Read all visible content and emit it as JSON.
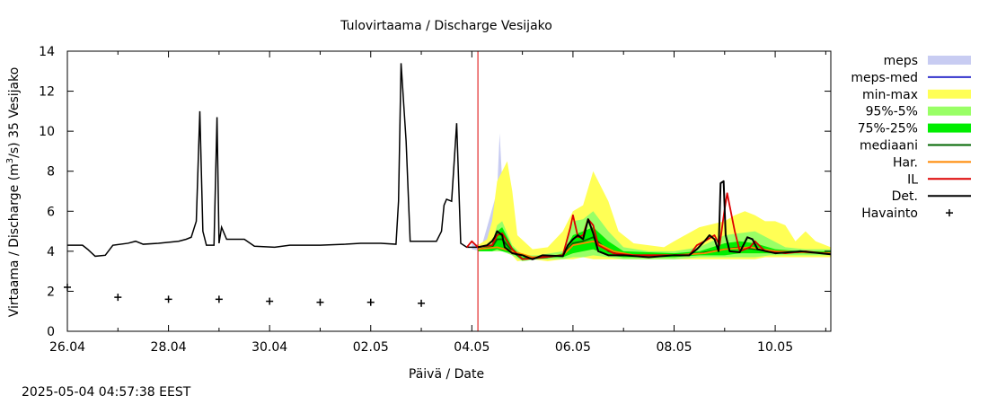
{
  "chart_data": {
    "type": "line",
    "title": "Tulovirtaama / Discharge  Vesijako",
    "xlabel": "Päivä / Date",
    "ylabel_parts": [
      "Virtaama / Discharge (m",
      "3",
      "/s)  35 Vesijako"
    ],
    "x_unit": "days since 26.04",
    "xlim": [
      0,
      15.1
    ],
    "ylim": [
      0,
      14
    ],
    "yticks": [
      "0",
      "2",
      "4",
      "6",
      "8",
      "10",
      "12",
      "14"
    ],
    "ytick_values": [
      0,
      2,
      4,
      6,
      8,
      10,
      12,
      14
    ],
    "xticks": [
      {
        "label": "26.04",
        "x": 0
      },
      {
        "label": "28.04",
        "x": 2
      },
      {
        "label": "30.04",
        "x": 4
      },
      {
        "label": "02.05",
        "x": 6
      },
      {
        "label": "04.05",
        "x": 8
      },
      {
        "label": "06.05",
        "x": 10
      },
      {
        "label": "08.05",
        "x": 12
      },
      {
        "label": "10.05",
        "x": 14
      }
    ],
    "forecast_start": 8.12,
    "observed": [
      [
        0,
        4.3
      ],
      [
        0.3,
        4.3
      ],
      [
        0.4,
        4.1
      ],
      [
        0.55,
        3.75
      ],
      [
        0.75,
        3.8
      ],
      [
        0.9,
        4.3
      ],
      [
        1.2,
        4.4
      ],
      [
        1.35,
        4.5
      ],
      [
        1.5,
        4.35
      ],
      [
        1.8,
        4.4
      ],
      [
        2.0,
        4.45
      ],
      [
        2.2,
        4.5
      ],
      [
        2.35,
        4.6
      ],
      [
        2.45,
        4.7
      ],
      [
        2.55,
        5.5
      ],
      [
        2.62,
        11.0
      ],
      [
        2.68,
        5.0
      ],
      [
        2.75,
        4.3
      ],
      [
        2.9,
        4.3
      ],
      [
        2.96,
        10.7
      ],
      [
        3.0,
        4.4
      ],
      [
        3.05,
        5.2
      ],
      [
        3.15,
        4.6
      ],
      [
        3.5,
        4.6
      ],
      [
        3.7,
        4.25
      ],
      [
        4.1,
        4.2
      ],
      [
        4.4,
        4.3
      ],
      [
        5.0,
        4.3
      ],
      [
        5.5,
        4.35
      ],
      [
        5.8,
        4.4
      ],
      [
        6.2,
        4.4
      ],
      [
        6.5,
        4.35
      ],
      [
        6.55,
        6.5
      ],
      [
        6.6,
        13.4
      ],
      [
        6.7,
        9.5
      ],
      [
        6.78,
        4.5
      ],
      [
        6.9,
        4.5
      ],
      [
        7.1,
        4.5
      ],
      [
        7.3,
        4.5
      ],
      [
        7.4,
        5.0
      ],
      [
        7.45,
        6.3
      ],
      [
        7.5,
        6.6
      ],
      [
        7.6,
        6.5
      ],
      [
        7.7,
        10.4
      ],
      [
        7.78,
        4.4
      ],
      [
        7.9,
        4.2
      ],
      [
        8.12,
        4.2
      ]
    ],
    "havainto": [
      [
        0,
        2.2
      ],
      [
        1,
        1.7
      ],
      [
        2,
        1.6
      ],
      [
        3,
        1.6
      ],
      [
        4,
        1.5
      ],
      [
        5,
        1.45
      ],
      [
        6,
        1.45
      ],
      [
        7,
        1.4
      ]
    ],
    "series": [
      {
        "name": "meps",
        "color": "#c8ccf2",
        "kind": "band",
        "x": [
          8.0,
          8.2,
          8.5,
          8.55,
          8.6,
          8.7,
          9.0,
          9.5,
          9.8,
          10.0,
          10.5,
          11.0,
          12.0,
          13.0,
          14.0,
          15.1
        ],
        "upper": [
          4.4,
          4.3,
          7.0,
          9.9,
          7.5,
          5.0,
          3.9,
          3.9,
          4.2,
          6.0,
          4.5,
          3.9,
          3.8,
          3.9,
          4.0,
          3.9
        ],
        "lower": [
          4.1,
          4.0,
          4.0,
          4.0,
          4.0,
          3.9,
          3.6,
          3.6,
          3.7,
          3.8,
          3.8,
          3.7,
          3.6,
          3.7,
          3.8,
          3.7
        ]
      },
      {
        "name": "meps-med",
        "color": "#3333cc",
        "kind": "line",
        "values": []
      },
      {
        "name": "min-max",
        "color": "#ffff55",
        "kind": "band",
        "x": [
          8.12,
          8.3,
          8.4,
          8.5,
          8.7,
          8.8,
          8.9,
          9.2,
          9.5,
          9.8,
          10.0,
          10.2,
          10.4,
          10.7,
          10.9,
          11.2,
          11.8,
          12.0,
          12.5,
          13.0,
          13.2,
          13.4,
          13.6,
          13.8,
          14.0,
          14.2,
          14.4,
          14.6,
          14.8,
          15.1
        ],
        "upper": [
          4.3,
          4.6,
          5.5,
          7.5,
          8.5,
          7.0,
          4.8,
          4.1,
          4.2,
          5.0,
          6.0,
          6.3,
          8.0,
          6.5,
          5.0,
          4.4,
          4.2,
          4.5,
          5.2,
          5.5,
          5.8,
          6.0,
          5.8,
          5.5,
          5.5,
          5.3,
          4.5,
          5.0,
          4.5,
          4.2
        ],
        "lower": [
          4.0,
          4.0,
          4.0,
          4.0,
          4.0,
          3.8,
          3.5,
          3.6,
          3.5,
          3.6,
          3.6,
          3.7,
          3.6,
          3.6,
          3.6,
          3.6,
          3.6,
          3.6,
          3.6,
          3.6,
          3.6,
          3.6,
          3.6,
          3.7,
          3.7,
          3.7,
          3.7,
          3.7,
          3.7,
          3.7
        ]
      },
      {
        "name": "95%-5%",
        "color": "#99ff66",
        "kind": "band",
        "x": [
          8.12,
          8.4,
          8.5,
          8.6,
          8.8,
          9.0,
          9.3,
          9.8,
          10.0,
          10.2,
          10.4,
          10.7,
          11.0,
          11.5,
          12.0,
          12.5,
          13.0,
          13.3,
          13.6,
          13.9,
          14.2,
          14.6,
          15.1
        ],
        "upper": [
          4.2,
          4.4,
          5.3,
          5.5,
          4.3,
          3.8,
          3.8,
          4.0,
          5.5,
          5.6,
          6.0,
          5.0,
          4.2,
          4.0,
          4.0,
          4.2,
          4.8,
          4.9,
          5.0,
          4.6,
          4.2,
          4.1,
          4.1
        ],
        "lower": [
          4.0,
          4.0,
          4.0,
          4.0,
          3.8,
          3.5,
          3.6,
          3.6,
          3.7,
          3.7,
          3.8,
          3.7,
          3.6,
          3.6,
          3.6,
          3.7,
          3.7,
          3.7,
          3.7,
          3.8,
          3.8,
          3.8,
          3.8
        ]
      },
      {
        "name": "75%-25%",
        "color": "#00ee00",
        "kind": "band",
        "x": [
          8.12,
          8.4,
          8.5,
          8.6,
          8.8,
          9.0,
          9.5,
          9.8,
          10.0,
          10.2,
          10.4,
          10.7,
          11.0,
          12.0,
          12.5,
          13.0,
          13.3,
          13.6,
          14.0,
          14.5,
          15.1
        ],
        "upper": [
          4.1,
          4.3,
          5.0,
          5.2,
          4.2,
          3.7,
          3.7,
          3.9,
          4.8,
          5.0,
          5.2,
          4.5,
          4.0,
          3.9,
          4.0,
          4.4,
          4.5,
          4.4,
          4.1,
          4.0,
          4.0
        ],
        "lower": [
          4.0,
          4.0,
          4.1,
          4.0,
          3.9,
          3.6,
          3.7,
          3.7,
          3.9,
          4.0,
          4.1,
          3.8,
          3.7,
          3.7,
          3.8,
          3.8,
          3.9,
          3.9,
          3.9,
          3.9,
          3.9
        ]
      },
      {
        "name": "mediaani",
        "color": "#006600",
        "kind": "line",
        "values": [
          [
            8.12,
            4.1
          ],
          [
            8.4,
            4.2
          ],
          [
            8.5,
            4.6
          ],
          [
            8.6,
            4.6
          ],
          [
            8.8,
            4.0
          ],
          [
            9.0,
            3.6
          ],
          [
            9.5,
            3.7
          ],
          [
            9.8,
            3.8
          ],
          [
            10.0,
            4.4
          ],
          [
            10.2,
            4.5
          ],
          [
            10.4,
            4.7
          ],
          [
            10.7,
            4.0
          ],
          [
            11.0,
            3.8
          ],
          [
            12.0,
            3.8
          ],
          [
            12.5,
            3.9
          ],
          [
            13.0,
            4.1
          ],
          [
            13.3,
            4.2
          ],
          [
            13.6,
            4.1
          ],
          [
            14.0,
            4.0
          ],
          [
            14.5,
            3.95
          ],
          [
            15.1,
            3.9
          ]
        ]
      },
      {
        "name": "Har.",
        "color": "#ff8800",
        "kind": "line",
        "values": [
          [
            8.12,
            4.1
          ],
          [
            8.5,
            4.2
          ],
          [
            8.8,
            4.0
          ],
          [
            9.2,
            3.7
          ],
          [
            9.8,
            3.8
          ],
          [
            10.0,
            4.3
          ],
          [
            10.4,
            4.5
          ],
          [
            10.8,
            4.0
          ],
          [
            11.2,
            3.8
          ],
          [
            12.0,
            3.8
          ],
          [
            12.6,
            3.9
          ],
          [
            13.0,
            4.1
          ],
          [
            13.5,
            4.2
          ],
          [
            14.0,
            4.0
          ],
          [
            15.1,
            3.9
          ]
        ]
      },
      {
        "name": "IL",
        "color": "#dd0000",
        "kind": "line",
        "values": [
          [
            7.9,
            4.2
          ],
          [
            8.0,
            4.5
          ],
          [
            8.12,
            4.2
          ],
          [
            8.4,
            4.3
          ],
          [
            8.5,
            4.8
          ],
          [
            8.6,
            4.9
          ],
          [
            8.8,
            4.1
          ],
          [
            9.0,
            3.6
          ],
          [
            9.4,
            3.7
          ],
          [
            9.8,
            3.8
          ],
          [
            9.95,
            5.2
          ],
          [
            10.0,
            5.8
          ],
          [
            10.1,
            4.7
          ],
          [
            10.2,
            4.8
          ],
          [
            10.3,
            5.6
          ],
          [
            10.4,
            5.3
          ],
          [
            10.5,
            4.3
          ],
          [
            10.8,
            3.9
          ],
          [
            11.2,
            3.8
          ],
          [
            12.0,
            3.8
          ],
          [
            12.3,
            3.8
          ],
          [
            12.45,
            4.3
          ],
          [
            12.6,
            4.5
          ],
          [
            12.8,
            4.8
          ],
          [
            12.9,
            4.3
          ],
          [
            13.0,
            6.1
          ],
          [
            13.05,
            6.9
          ],
          [
            13.2,
            5.0
          ],
          [
            13.3,
            4.0
          ],
          [
            13.5,
            4.2
          ],
          [
            13.6,
            4.5
          ],
          [
            13.8,
            4.0
          ],
          [
            14.2,
            3.9
          ],
          [
            14.6,
            4.0
          ],
          [
            15.1,
            3.85
          ]
        ]
      },
      {
        "name": "Det.",
        "color": "#000000",
        "kind": "line",
        "values": [
          [
            8.12,
            4.2
          ],
          [
            8.3,
            4.3
          ],
          [
            8.4,
            4.5
          ],
          [
            8.45,
            4.7
          ],
          [
            8.5,
            5.0
          ],
          [
            8.6,
            4.8
          ],
          [
            8.65,
            4.2
          ],
          [
            8.8,
            3.9
          ],
          [
            9.0,
            3.8
          ],
          [
            9.2,
            3.6
          ],
          [
            9.4,
            3.8
          ],
          [
            9.8,
            3.75
          ],
          [
            9.9,
            4.3
          ],
          [
            10.0,
            4.6
          ],
          [
            10.1,
            4.8
          ],
          [
            10.2,
            4.6
          ],
          [
            10.3,
            5.6
          ],
          [
            10.4,
            4.9
          ],
          [
            10.5,
            4.0
          ],
          [
            10.7,
            3.8
          ],
          [
            11.0,
            3.8
          ],
          [
            11.5,
            3.7
          ],
          [
            12.0,
            3.8
          ],
          [
            12.3,
            3.8
          ],
          [
            12.45,
            4.1
          ],
          [
            12.6,
            4.5
          ],
          [
            12.7,
            4.8
          ],
          [
            12.8,
            4.6
          ],
          [
            12.88,
            4.0
          ],
          [
            12.92,
            7.4
          ],
          [
            12.98,
            7.5
          ],
          [
            13.02,
            4.8
          ],
          [
            13.1,
            4.0
          ],
          [
            13.3,
            3.95
          ],
          [
            13.45,
            4.7
          ],
          [
            13.55,
            4.6
          ],
          [
            13.65,
            4.1
          ],
          [
            14.0,
            3.9
          ],
          [
            14.5,
            4.0
          ],
          [
            15.1,
            3.85
          ]
        ]
      },
      {
        "name": "Havainto",
        "color": "#000000",
        "kind": "points",
        "values": []
      }
    ]
  },
  "timestamp": "2025-05-04 04:57:38 EEST"
}
